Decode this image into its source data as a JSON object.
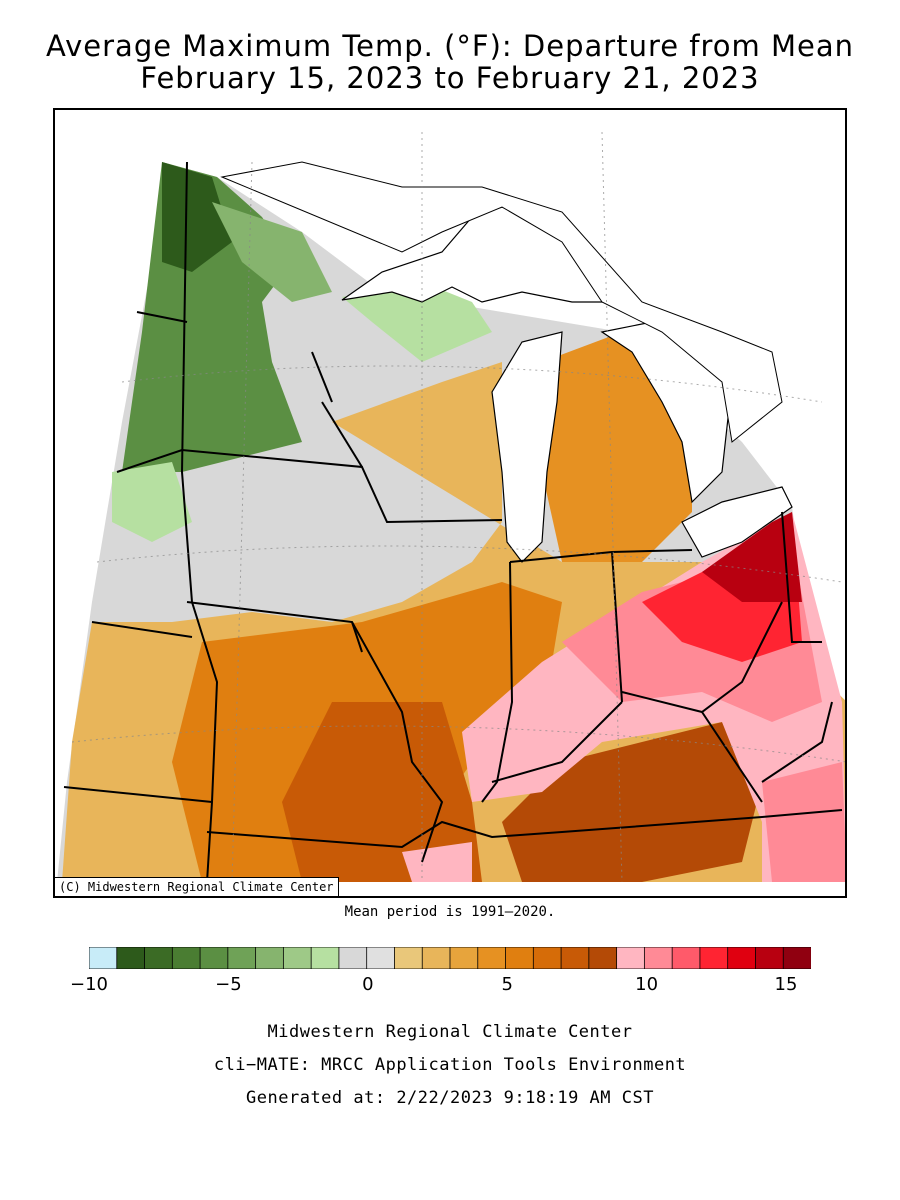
{
  "title": {
    "line1": "Average Maximum Temp. (°F): Departure from Mean",
    "line2": "February 15, 2023 to February 21, 2023"
  },
  "map": {
    "copyright": "(C) Midwestern Regional Climate Center",
    "mean_period": "Mean period is 1991–2020."
  },
  "legend": {
    "colors": [
      "#c8ecf8",
      "#2d5a1b",
      "#3b6b25",
      "#4a7d32",
      "#5b8f43",
      "#6fa257",
      "#86b46e",
      "#9ec987",
      "#b6e0a1",
      "#d8d8d8",
      "#e0e0e0",
      "#e9c77a",
      "#e8b55a",
      "#e7a43c",
      "#e69122",
      "#e07f10",
      "#d66c08",
      "#c85a06",
      "#b44a06",
      "#ffb6c1",
      "#ff8a96",
      "#ff5a6a",
      "#ff2432",
      "#e00010",
      "#b80010",
      "#900010"
    ],
    "tick_labels": [
      "−10",
      "−5",
      "0",
      "5",
      "10",
      "15"
    ],
    "tick_values": [
      -10,
      -5,
      0,
      5,
      10,
      15
    ]
  },
  "footer": {
    "line1": "Midwestern Regional Climate Center",
    "line2": "cli−MATE: MRCC Application Tools Environment",
    "line3": "Generated at: 2/22/2023 9:18:19 AM CST"
  }
}
